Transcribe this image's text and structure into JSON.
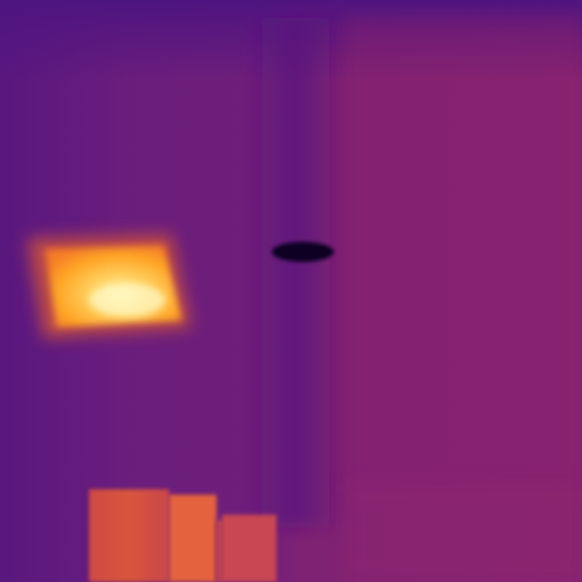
{
  "image": {
    "kind": "thermal-camera-view",
    "palette": "inferno"
  },
  "colors": {
    "background_left": "#6b1d7c",
    "background_right": "#85226f",
    "seam": "#55167e",
    "top_band": "#4e1480",
    "hot_core": "#fff3a6",
    "hot_mid": "#ffb22e",
    "hot_edge": "#f07a2a",
    "warm_block": "#d9523a",
    "warm_block_bright": "#e8613a",
    "cold_spot": "#0d0420"
  }
}
